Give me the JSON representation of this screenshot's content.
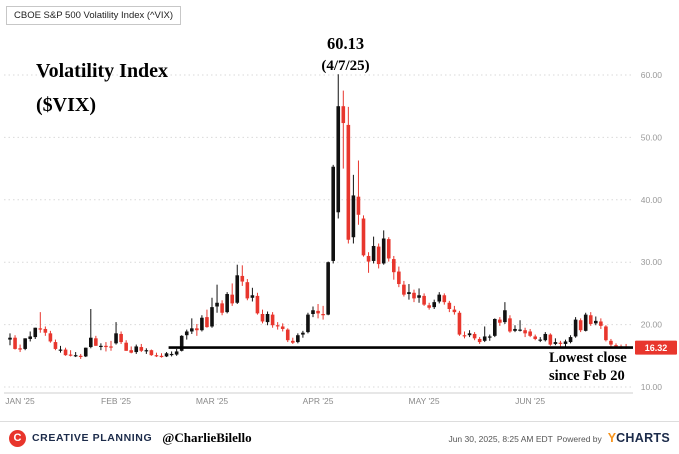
{
  "header": {
    "instrument_label": "CBOE S&P 500 Volatility Index (^VIX)"
  },
  "annotations": {
    "hand_title_line1": "Volatility Index",
    "hand_title_line2": "($VIX)",
    "peak_value": "60.13",
    "peak_date": "(4/7/25)",
    "lowest_line1": "Lowest close",
    "lowest_line2": "since Feb 20",
    "last_price_tag": "16.32"
  },
  "footer": {
    "brand": "CREATIVE PLANNING",
    "brand_logo_letter": "C",
    "handle": "@CharlieBilello",
    "timestamp": "Jun 30, 2025, 8:25 AM EDT",
    "powered_by": "Powered by",
    "ycharts_y": "Y",
    "ycharts_rest": "CHARTS"
  },
  "colors": {
    "up_candle": "#111111",
    "down_candle": "#e8362d",
    "tag_bg": "#e8362d",
    "grid": "#d9d9d9",
    "axis_text": "#999999",
    "support_line": "#000000"
  },
  "chart_data": {
    "type": "candlestick",
    "title": "CBOE S&P 500 Volatility Index (^VIX)",
    "y_axis": {
      "min": 10,
      "max": 60,
      "ticks": [
        60,
        50,
        40,
        30,
        20,
        10
      ],
      "tick_labels": [
        "60.00",
        "50.00",
        "40.00",
        "30.00",
        "20.00",
        "10.00"
      ],
      "grid": true,
      "position": "right"
    },
    "x_axis": {
      "month_labels": [
        "JAN '25",
        "FEB '25",
        "MAR '25",
        "APR '25",
        "MAY '25",
        "JUN '25"
      ],
      "month_start_indices": [
        0,
        21,
        40,
        61,
        82,
        103
      ]
    },
    "peak": {
      "value": 60.13,
      "date": "4/7/25",
      "candle_index": 65
    },
    "support_line": {
      "value": 16.32,
      "start_index": 32
    },
    "last_close": 16.32,
    "candles": [
      [
        17.6,
        18.6,
        16.7,
        17.9
      ],
      [
        17.9,
        18.3,
        16.0,
        16.1
      ],
      [
        16.2,
        16.8,
        15.6,
        16.0
      ],
      [
        16.1,
        17.8,
        15.9,
        17.8
      ],
      [
        17.7,
        18.9,
        17.3,
        18.1
      ],
      [
        18.0,
        19.5,
        17.7,
        19.5
      ],
      [
        19.4,
        22.0,
        18.7,
        19.2
      ],
      [
        19.3,
        19.7,
        18.2,
        18.7
      ],
      [
        18.6,
        19.0,
        17.1,
        17.3
      ],
      [
        17.2,
        17.6,
        15.9,
        16.1
      ],
      [
        16.0,
        16.6,
        15.5,
        16.0
      ],
      [
        16.0,
        16.3,
        15.0,
        15.1
      ],
      [
        15.2,
        15.9,
        14.9,
        15.1
      ],
      [
        15.0,
        15.6,
        14.8,
        15.1
      ],
      [
        15.0,
        15.3,
        14.5,
        14.9
      ],
      [
        14.9,
        16.3,
        14.8,
        16.3
      ],
      [
        16.4,
        22.5,
        16.2,
        17.9
      ],
      [
        17.8,
        18.2,
        16.6,
        16.6
      ],
      [
        16.5,
        17.0,
        15.9,
        16.6
      ],
      [
        16.6,
        17.2,
        15.7,
        16.4
      ],
      [
        16.5,
        17.4,
        15.8,
        16.4
      ],
      [
        17.0,
        20.4,
        16.8,
        18.6
      ],
      [
        18.5,
        18.9,
        16.9,
        17.2
      ],
      [
        17.1,
        17.5,
        15.8,
        15.8
      ],
      [
        15.9,
        16.5,
        15.4,
        15.5
      ],
      [
        15.6,
        16.8,
        15.3,
        16.5
      ],
      [
        16.4,
        16.9,
        15.6,
        15.8
      ],
      [
        15.9,
        16.2,
        15.3,
        15.9
      ],
      [
        15.9,
        16.0,
        15.0,
        15.1
      ],
      [
        15.1,
        15.5,
        14.8,
        15.0
      ],
      [
        15.0,
        15.4,
        14.7,
        14.8
      ],
      [
        14.9,
        15.6,
        14.8,
        15.4
      ],
      [
        15.3,
        15.7,
        14.9,
        15.3
      ],
      [
        15.2,
        16.1,
        15.0,
        15.7
      ],
      [
        15.8,
        18.3,
        15.7,
        18.2
      ],
      [
        18.3,
        19.2,
        17.6,
        18.9
      ],
      [
        18.9,
        21.0,
        18.5,
        19.4
      ],
      [
        19.4,
        20.1,
        18.2,
        19.1
      ],
      [
        19.1,
        21.5,
        18.9,
        21.1
      ],
      [
        21.2,
        22.4,
        19.5,
        19.6
      ],
      [
        19.7,
        24.3,
        19.5,
        22.8
      ],
      [
        22.9,
        26.4,
        21.9,
        23.5
      ],
      [
        23.4,
        23.9,
        21.5,
        21.9
      ],
      [
        22.0,
        25.2,
        21.8,
        24.9
      ],
      [
        24.8,
        26.6,
        23.0,
        23.4
      ],
      [
        23.5,
        29.6,
        23.3,
        27.9
      ],
      [
        27.8,
        29.5,
        26.2,
        26.9
      ],
      [
        26.8,
        27.3,
        23.9,
        24.2
      ],
      [
        24.3,
        25.9,
        23.7,
        24.7
      ],
      [
        24.6,
        25.1,
        21.6,
        21.8
      ],
      [
        21.7,
        22.4,
        20.2,
        20.5
      ],
      [
        20.4,
        22.1,
        19.9,
        21.7
      ],
      [
        21.6,
        22.0,
        19.5,
        19.9
      ],
      [
        19.9,
        20.4,
        19.2,
        19.8
      ],
      [
        19.7,
        20.2,
        18.9,
        19.3
      ],
      [
        19.2,
        19.4,
        17.2,
        17.5
      ],
      [
        17.4,
        17.9,
        16.9,
        17.1
      ],
      [
        17.2,
        18.6,
        17.0,
        18.3
      ],
      [
        18.4,
        19.0,
        17.9,
        18.7
      ],
      [
        18.8,
        21.9,
        18.6,
        21.6
      ],
      [
        21.7,
        22.9,
        21.2,
        22.3
      ],
      [
        22.2,
        23.3,
        21.0,
        21.8
      ],
      [
        21.7,
        23.0,
        20.8,
        21.5
      ],
      [
        21.6,
        30.1,
        21.5,
        30.0
      ],
      [
        30.2,
        45.6,
        29.8,
        45.3
      ],
      [
        38.0,
        60.13,
        37.0,
        55.0
      ],
      [
        55.0,
        57.5,
        45.0,
        52.3
      ],
      [
        52.0,
        54.9,
        33.0,
        33.6
      ],
      [
        34.0,
        44.0,
        33.0,
        40.7
      ],
      [
        40.5,
        46.3,
        36.0,
        37.6
      ],
      [
        37.0,
        37.5,
        30.9,
        31.1
      ],
      [
        31.0,
        31.6,
        28.3,
        30.1
      ],
      [
        30.2,
        34.1,
        29.8,
        32.6
      ],
      [
        32.5,
        33.0,
        29.0,
        29.7
      ],
      [
        29.8,
        35.1,
        29.6,
        33.8
      ],
      [
        33.7,
        34.0,
        30.1,
        30.6
      ],
      [
        30.5,
        31.0,
        27.2,
        28.4
      ],
      [
        28.5,
        29.3,
        26.0,
        26.5
      ],
      [
        26.4,
        27.0,
        24.5,
        24.8
      ],
      [
        24.9,
        26.5,
        24.0,
        25.2
      ],
      [
        25.1,
        25.6,
        23.6,
        24.2
      ],
      [
        24.3,
        25.8,
        23.5,
        24.7
      ],
      [
        24.6,
        25.0,
        23.0,
        23.2
      ],
      [
        23.1,
        23.5,
        22.4,
        22.7
      ],
      [
        22.8,
        24.0,
        22.5,
        23.6
      ],
      [
        23.7,
        25.2,
        23.4,
        24.8
      ],
      [
        24.7,
        25.0,
        23.2,
        23.6
      ],
      [
        23.5,
        23.8,
        22.0,
        22.5
      ],
      [
        22.4,
        23.0,
        21.6,
        22.0
      ],
      [
        21.9,
        22.2,
        18.2,
        18.4
      ],
      [
        18.3,
        18.9,
        17.8,
        18.2
      ],
      [
        18.3,
        19.1,
        18.0,
        18.6
      ],
      [
        18.5,
        18.8,
        17.5,
        17.8
      ],
      [
        17.7,
        18.0,
        16.9,
        17.2
      ],
      [
        17.4,
        19.7,
        17.2,
        18.1
      ],
      [
        18.0,
        18.4,
        17.4,
        18.1
      ],
      [
        18.2,
        21.0,
        18.0,
        20.9
      ],
      [
        20.8,
        21.2,
        19.8,
        20.3
      ],
      [
        20.4,
        23.6,
        20.1,
        22.3
      ],
      [
        21.0,
        21.5,
        18.7,
        18.9
      ],
      [
        19.0,
        19.9,
        18.8,
        19.3
      ],
      [
        19.2,
        20.7,
        18.9,
        19.2
      ],
      [
        19.1,
        19.5,
        18.0,
        18.6
      ],
      [
        18.9,
        19.3,
        18.0,
        18.2
      ],
      [
        18.1,
        18.4,
        17.5,
        17.7
      ],
      [
        17.6,
        18.0,
        17.2,
        17.6
      ],
      [
        17.5,
        18.8,
        17.3,
        18.5
      ],
      [
        18.4,
        18.6,
        16.6,
        16.8
      ],
      [
        16.9,
        17.8,
        16.7,
        17.2
      ],
      [
        17.1,
        17.4,
        16.5,
        17.0
      ],
      [
        16.9,
        17.6,
        16.5,
        17.3
      ],
      [
        17.2,
        18.3,
        17.0,
        18.0
      ],
      [
        18.1,
        21.2,
        17.9,
        20.8
      ],
      [
        20.7,
        21.0,
        18.8,
        19.1
      ],
      [
        19.0,
        21.9,
        18.9,
        21.6
      ],
      [
        21.5,
        22.0,
        19.8,
        20.1
      ],
      [
        20.2,
        21.3,
        19.9,
        20.6
      ],
      [
        20.5,
        21.0,
        19.3,
        19.8
      ],
      [
        19.7,
        19.9,
        17.3,
        17.5
      ],
      [
        17.4,
        17.7,
        16.5,
        16.8
      ],
      [
        16.7,
        17.0,
        16.3,
        16.6
      ],
      [
        16.5,
        16.8,
        16.1,
        16.3
      ],
      [
        16.4,
        16.9,
        16.1,
        16.32
      ]
    ]
  }
}
